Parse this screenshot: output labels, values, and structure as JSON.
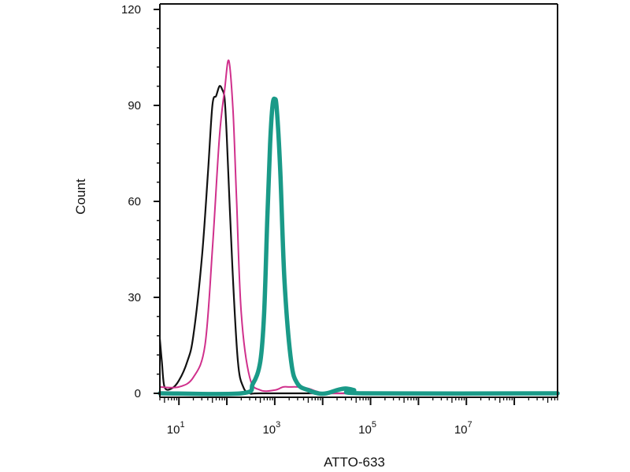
{
  "chart_data": {
    "type": "line",
    "title": "",
    "xlabel": "ATTO-633",
    "ylabel": "Count",
    "x_scale": "log",
    "xlim": [
      4,
      800000000
    ],
    "ylim": [
      0,
      120
    ],
    "grid": false,
    "legend": "none",
    "y_ticks": [
      {
        "value": 0,
        "label": "0"
      },
      {
        "value": 30,
        "label": "30"
      },
      {
        "value": 60,
        "label": "60"
      },
      {
        "value": 90,
        "label": "90"
      },
      {
        "value": 120,
        "label": "120"
      }
    ],
    "x_ticks": [
      {
        "value": 10,
        "base": "10",
        "exp": "1"
      },
      {
        "value": 1000,
        "base": "10",
        "exp": "3"
      },
      {
        "value": 100000,
        "base": "10",
        "exp": "5"
      },
      {
        "value": 10000000,
        "base": "10",
        "exp": "7"
      }
    ],
    "series": [
      {
        "color": "#111111",
        "points": [
          [
            4,
            17
          ],
          [
            4.4,
            10
          ],
          [
            5,
            2
          ],
          [
            7,
            1.5
          ],
          [
            10,
            4
          ],
          [
            15,
            10
          ],
          [
            20,
            18
          ],
          [
            30,
            42
          ],
          [
            40,
            68
          ],
          [
            50,
            90
          ],
          [
            60,
            93
          ],
          [
            70,
            96
          ],
          [
            80,
            95
          ],
          [
            90,
            92
          ],
          [
            100,
            80
          ],
          [
            130,
            40
          ],
          [
            170,
            10
          ],
          [
            220,
            2
          ],
          [
            300,
            0
          ],
          [
            500,
            0
          ],
          [
            10000,
            0
          ],
          [
            800000000,
            0
          ]
        ]
      },
      {
        "color": "#d0308c",
        "points": [
          [
            4,
            2
          ],
          [
            10,
            2
          ],
          [
            20,
            5
          ],
          [
            35,
            15
          ],
          [
            50,
            45
          ],
          [
            70,
            80
          ],
          [
            90,
            95
          ],
          [
            110,
            104
          ],
          [
            135,
            88
          ],
          [
            160,
            60
          ],
          [
            200,
            25
          ],
          [
            300,
            5
          ],
          [
            500,
            1
          ],
          [
            1000,
            1
          ],
          [
            1500,
            2
          ],
          [
            2000,
            2
          ],
          [
            3000,
            2
          ],
          [
            5000,
            1.5
          ],
          [
            8000,
            0.5
          ],
          [
            15000,
            0
          ],
          [
            800000000,
            0
          ]
        ]
      },
      {
        "color": "#1a9a88",
        "points": [
          [
            4,
            0
          ],
          [
            200,
            0
          ],
          [
            350,
            3
          ],
          [
            500,
            10
          ],
          [
            600,
            25
          ],
          [
            700,
            55
          ],
          [
            800,
            78
          ],
          [
            900,
            90
          ],
          [
            1000,
            92
          ],
          [
            1100,
            89
          ],
          [
            1300,
            70
          ],
          [
            1600,
            35
          ],
          [
            2200,
            10
          ],
          [
            3000,
            3
          ],
          [
            5000,
            1
          ],
          [
            8000,
            0
          ],
          [
            12000,
            0
          ],
          [
            20000,
            1
          ],
          [
            30000,
            1.5
          ],
          [
            45000,
            1
          ],
          [
            70000,
            0
          ],
          [
            800000000,
            0
          ]
        ]
      }
    ]
  }
}
